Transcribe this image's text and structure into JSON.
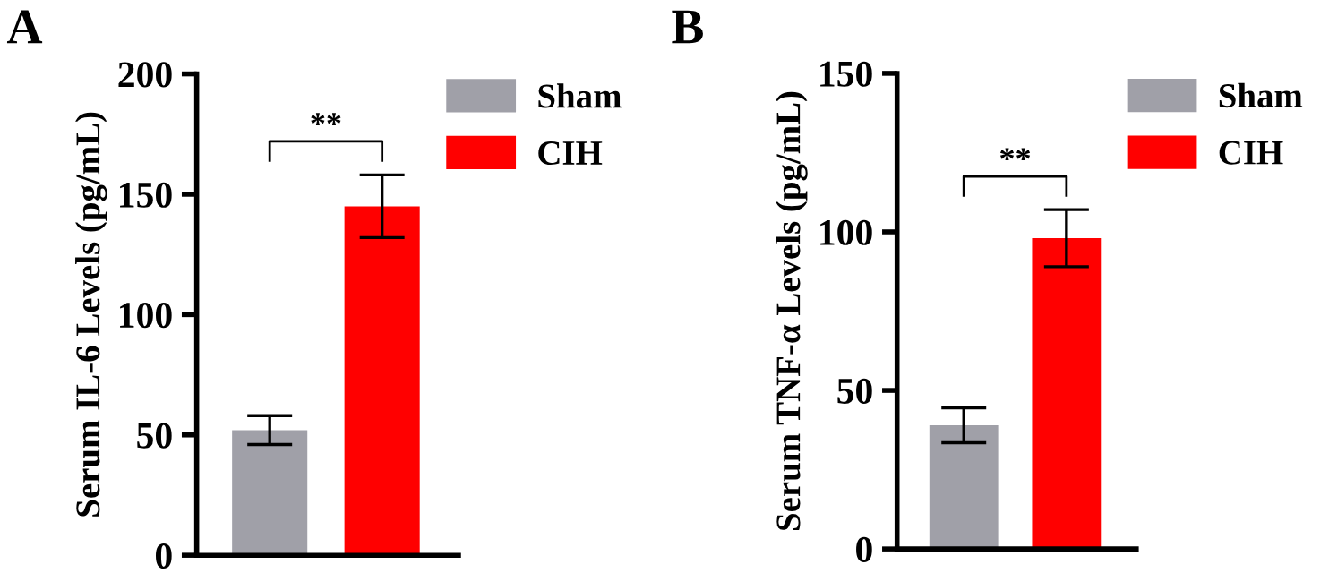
{
  "chart_data": [
    {
      "type": "bar",
      "title": "A",
      "ylabel": "Serum IL-6 Levels (pg/mL)",
      "categories": [
        null,
        null
      ],
      "series": [
        {
          "name": "Sham",
          "color": "#a0a0a8",
          "values": [
            52,
            null
          ],
          "errors": [
            6,
            null
          ]
        },
        {
          "name": "CIH",
          "color": "#ff0000",
          "values": [
            null,
            145
          ],
          "errors": [
            null,
            13
          ]
        }
      ],
      "ylim": [
        0,
        200
      ],
      "yticks": [
        0,
        50,
        100,
        150,
        200
      ],
      "tick_labels": "y",
      "legend": "top right",
      "annotations": [
        "**"
      ]
    },
    {
      "type": "bar",
      "title": "B",
      "ylabel": "Serum TNF-α Levels (pg/mL)",
      "categories": [
        null,
        null
      ],
      "series": [
        {
          "name": "Sham",
          "color": "#a0a0a8",
          "values": [
            39,
            null
          ],
          "errors": [
            5.5,
            null
          ]
        },
        {
          "name": "CIH",
          "color": "#ff0000",
          "values": [
            null,
            98
          ],
          "errors": [
            null,
            9
          ]
        }
      ],
      "ylim": [
        0,
        150
      ],
      "yticks": [
        0,
        50,
        100,
        150
      ],
      "tick_labels": "y",
      "legend": "top right",
      "annotations": [
        "**"
      ]
    }
  ]
}
